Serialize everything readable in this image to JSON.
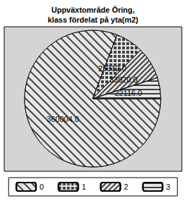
{
  "chart_data": {
    "type": "pie",
    "title": "Uppväxtområde Öring,\nklass fördelat på yta(m2)",
    "categories": [
      "0",
      "1",
      "2",
      "3"
    ],
    "values": [
      360004.0,
      29312.0,
      33920.0,
      22116.0
    ],
    "value_labels": [
      "360004.0",
      "29312.0",
      "33920.0",
      "22116.0"
    ],
    "colors": [
      "#e6e6e6",
      "#e6e6e6",
      "#e6e6e6",
      "#e6e6e6"
    ],
    "data_labels": true,
    "legend": "bottom"
  }
}
